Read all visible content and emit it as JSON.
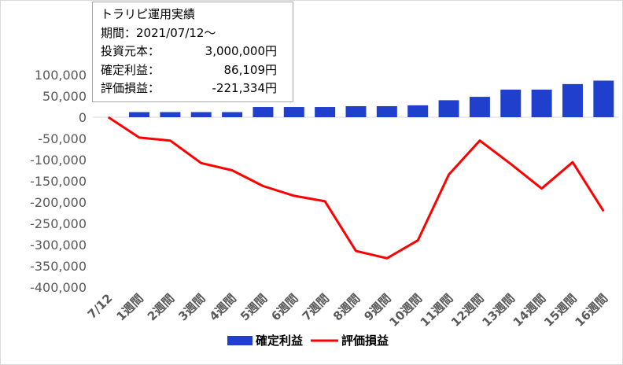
{
  "info_box": {
    "title": "トラリピ運用実績",
    "period_label": "期間：2021/07/12～",
    "rows": [
      {
        "label": "投資元本：",
        "value": "3,000,000円"
      },
      {
        "label": "確定利益：",
        "value": "86,109円"
      },
      {
        "label": "評価損益：",
        "value": "-221,334円"
      }
    ]
  },
  "chart_data": {
    "type": "bar+line",
    "categories": [
      "7/12",
      "1週間",
      "2週間",
      "3週間",
      "4週間",
      "5週間",
      "6週間",
      "7週間",
      "8週間",
      "9週間",
      "10週間",
      "11週間",
      "12週間",
      "13週間",
      "14週間",
      "15週間",
      "16週間"
    ],
    "series": [
      {
        "name": "確定利益",
        "type": "bar",
        "color": "#1f3fcc",
        "values": [
          0,
          12000,
          12000,
          12000,
          12000,
          24000,
          24000,
          24000,
          26000,
          26000,
          28000,
          40000,
          48000,
          65000,
          65000,
          78000,
          86109
        ]
      },
      {
        "name": "評価損益",
        "type": "line",
        "color": "#ff0000",
        "values": [
          0,
          -48000,
          -55000,
          -108000,
          -125000,
          -162000,
          -185000,
          -198000,
          -315000,
          -332000,
          -290000,
          -135000,
          -55000,
          -110000,
          -168000,
          -106000,
          -221334
        ]
      }
    ],
    "yticks": [
      "100,000",
      "50,000",
      "0",
      "-50,000",
      "-100,000",
      "-150,000",
      "-200,000",
      "-250,000",
      "-300,000",
      "-350,000",
      "-400,000"
    ],
    "ylim": [
      -400000,
      100000
    ],
    "legend_position": "bottom",
    "grid": false
  }
}
